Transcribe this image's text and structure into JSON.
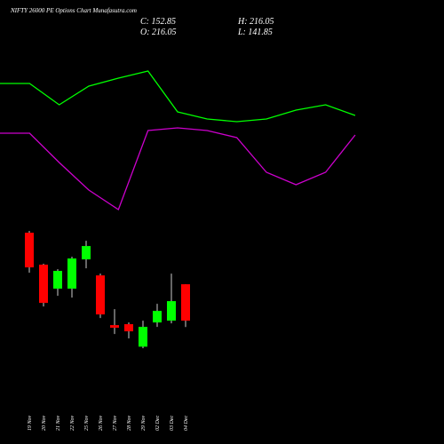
{
  "chart_data": [
    {
      "type": "candlestick",
      "title": "NIFTY 26000  PE Options  Chart Munafasutra.com",
      "legend_text": [
        "C: 152.85",
        "H: 216.05",
        "O: 216.05",
        "L: 141.85"
      ],
      "categories": [
        "19 Nov",
        "20 Nov",
        "21 Nov",
        "22 Nov",
        "25 Nov",
        "26 Nov",
        "27 Nov",
        "28 Nov",
        "29 Nov",
        "02 Dec",
        "03 Dec",
        "04 Dec"
      ],
      "open": [
        305.4,
        250.0,
        208.4,
        208.4,
        259.2,
        231.4,
        145.2,
        146.8,
        107.8,
        149.8,
        152.9,
        216.05
      ],
      "high": [
        308.5,
        251.6,
        242.2,
        263.8,
        291.5,
        234.5,
        172.9,
        149.8,
        152.9,
        182.2,
        234.5,
        216.05
      ],
      "low": [
        236.1,
        177.5,
        196.0,
        193.0,
        243.8,
        157.5,
        129.8,
        122.1,
        105.2,
        142.1,
        148.3,
        141.85
      ],
      "close": [
        245.3,
        183.7,
        239.2,
        260.7,
        282.3,
        163.7,
        140.6,
        134.4,
        142.1,
        169.8,
        186.8,
        152.85
      ],
      "up_color": "#00ff00",
      "down_color": "#ff0000",
      "ylim": [
        -61,
        709
      ]
    },
    {
      "type": "line",
      "series": [
        {
          "color": "#00ff00",
          "values": [
            83,
            83,
            71,
            81.5,
            86,
            90,
            67,
            63,
            61.5,
            63,
            68,
            71,
            65
          ]
        },
        {
          "color": "#cc00cc",
          "values": [
            55,
            55,
            38.5,
            23,
            12,
            56.5,
            58,
            56.5,
            52.5,
            33,
            26,
            33,
            54
          ]
        }
      ],
      "ylim": [
        0,
        100
      ]
    }
  ]
}
